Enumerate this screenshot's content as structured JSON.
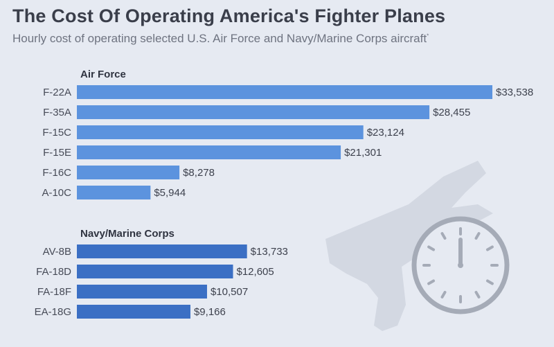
{
  "title": "The Cost Of Operating America's Fighter Planes",
  "subtitle": "Hourly cost of operating selected U.S. Air Force and Navy/Marine Corps aircraft",
  "subtitle_mark": "*",
  "colors": {
    "background": "#e6eaf2",
    "air_force_bar": "#5c93de",
    "navy_bar": "#3b6fc4",
    "decoration": "#d3d8e2",
    "clock": "#a5abb7"
  },
  "icons": [
    "fighter-jet-silhouette-icon",
    "clock-icon"
  ],
  "chart_data": [
    {
      "type": "bar",
      "orientation": "horizontal",
      "group": "Air Force",
      "categories": [
        "F-22A",
        "F-35A",
        "F-15C",
        "F-15E",
        "F-16C",
        "A-10C"
      ],
      "values": [
        33538,
        28455,
        23124,
        21301,
        8278,
        5944
      ],
      "labels": [
        "$33,538",
        "$28,455",
        "$23,124",
        "$21,301",
        "$8,278",
        "$5,944"
      ]
    },
    {
      "type": "bar",
      "orientation": "horizontal",
      "group": "Navy/Marine Corps",
      "categories": [
        "AV-8B",
        "FA-18D",
        "FA-18F",
        "EA-18G"
      ],
      "values": [
        13733,
        12605,
        10507,
        9166
      ],
      "labels": [
        "$13,733",
        "$12,605",
        "$10,507",
        "$9,166"
      ]
    }
  ]
}
